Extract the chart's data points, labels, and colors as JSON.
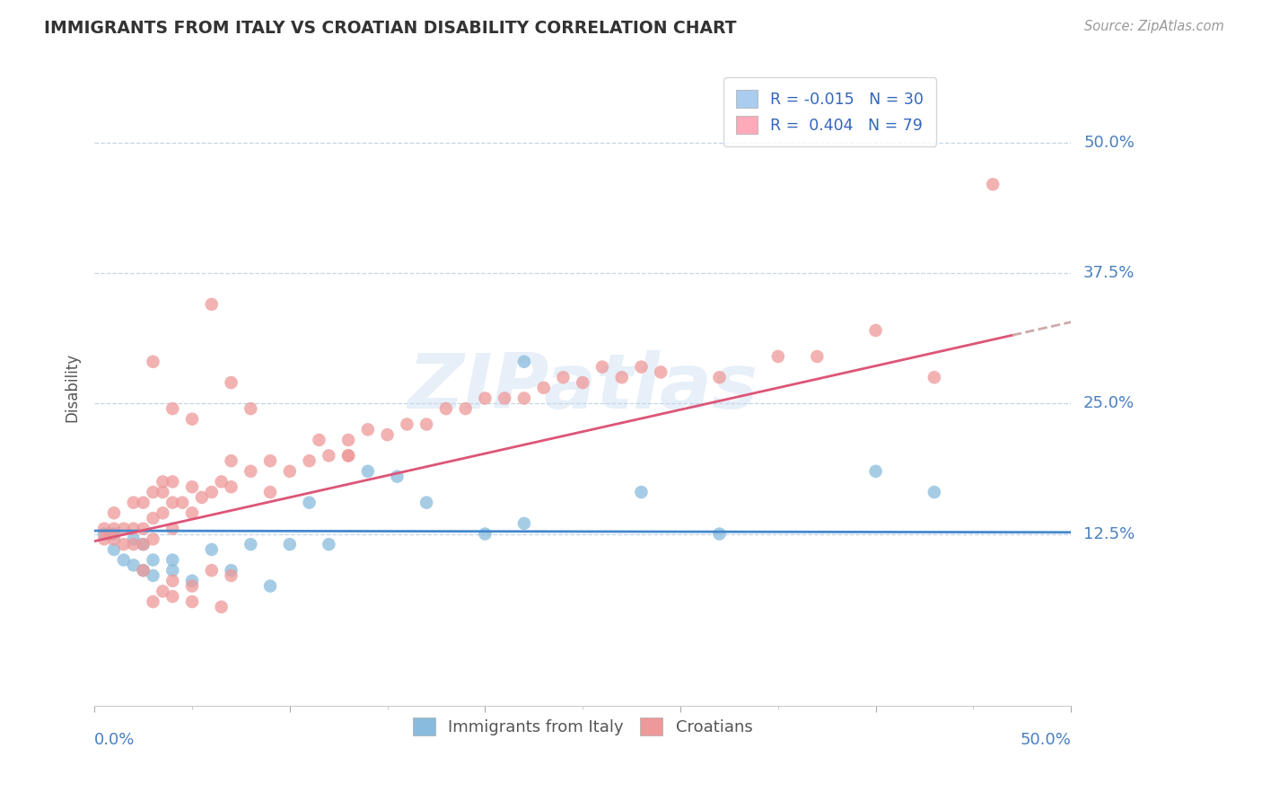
{
  "title": "IMMIGRANTS FROM ITALY VS CROATIAN DISABILITY CORRELATION CHART",
  "source": "Source: ZipAtlas.com",
  "ylabel": "Disability",
  "y_tick_labels": [
    "12.5%",
    "25.0%",
    "37.5%",
    "50.0%"
  ],
  "y_tick_values": [
    0.125,
    0.25,
    0.375,
    0.5
  ],
  "xlim": [
    0.0,
    0.5
  ],
  "ylim": [
    -0.04,
    0.57
  ],
  "legend_entries": [
    {
      "label": "R = -0.015   N = 30",
      "color": "#aaccee"
    },
    {
      "label": "R =  0.404   N = 79",
      "color": "#ffaabb"
    }
  ],
  "watermark": "ZIPatlas",
  "blue_color": "#88bbdd",
  "pink_color": "#ee9999",
  "blue_line_color": "#4488cc",
  "pink_line_color": "#dd5577",
  "blue_line_intercept": 0.128,
  "blue_line_slope": -0.003,
  "pink_line_intercept": 0.118,
  "pink_line_slope": 0.42,
  "blue_points_x": [
    0.005,
    0.01,
    0.01,
    0.015,
    0.02,
    0.02,
    0.025,
    0.025,
    0.03,
    0.03,
    0.04,
    0.04,
    0.05,
    0.06,
    0.07,
    0.08,
    0.09,
    0.1,
    0.11,
    0.12,
    0.14,
    0.155,
    0.17,
    0.2,
    0.22,
    0.28,
    0.32,
    0.4,
    0.43,
    0.22
  ],
  "blue_points_y": [
    0.125,
    0.125,
    0.11,
    0.1,
    0.095,
    0.12,
    0.09,
    0.115,
    0.085,
    0.1,
    0.1,
    0.09,
    0.08,
    0.11,
    0.09,
    0.115,
    0.075,
    0.115,
    0.155,
    0.115,
    0.185,
    0.18,
    0.155,
    0.125,
    0.135,
    0.165,
    0.125,
    0.185,
    0.165,
    0.29
  ],
  "pink_points_x": [
    0.005,
    0.005,
    0.008,
    0.01,
    0.01,
    0.01,
    0.015,
    0.015,
    0.02,
    0.02,
    0.02,
    0.025,
    0.025,
    0.025,
    0.03,
    0.03,
    0.03,
    0.035,
    0.035,
    0.04,
    0.04,
    0.04,
    0.045,
    0.05,
    0.05,
    0.055,
    0.06,
    0.065,
    0.07,
    0.07,
    0.08,
    0.09,
    0.09,
    0.1,
    0.11,
    0.115,
    0.12,
    0.13,
    0.13,
    0.14,
    0.15,
    0.16,
    0.17,
    0.18,
    0.19,
    0.2,
    0.21,
    0.22,
    0.23,
    0.24,
    0.25,
    0.26,
    0.27,
    0.28,
    0.29,
    0.32,
    0.35,
    0.37,
    0.4,
    0.43,
    0.03,
    0.04,
    0.05,
    0.07,
    0.08,
    0.06,
    0.035,
    0.04,
    0.05,
    0.06,
    0.07,
    0.035,
    0.025,
    0.04,
    0.05,
    0.065,
    0.03,
    0.46,
    0.13
  ],
  "pink_points_y": [
    0.13,
    0.12,
    0.125,
    0.12,
    0.13,
    0.145,
    0.115,
    0.13,
    0.115,
    0.13,
    0.155,
    0.115,
    0.13,
    0.155,
    0.12,
    0.14,
    0.165,
    0.145,
    0.165,
    0.13,
    0.155,
    0.175,
    0.155,
    0.145,
    0.17,
    0.16,
    0.165,
    0.175,
    0.17,
    0.195,
    0.185,
    0.195,
    0.165,
    0.185,
    0.195,
    0.215,
    0.2,
    0.215,
    0.2,
    0.225,
    0.22,
    0.23,
    0.23,
    0.245,
    0.245,
    0.255,
    0.255,
    0.255,
    0.265,
    0.275,
    0.27,
    0.285,
    0.275,
    0.285,
    0.28,
    0.275,
    0.295,
    0.295,
    0.32,
    0.275,
    0.29,
    0.245,
    0.235,
    0.27,
    0.245,
    0.345,
    0.175,
    0.08,
    0.075,
    0.09,
    0.085,
    0.07,
    0.09,
    0.065,
    0.06,
    0.055,
    0.06,
    0.46,
    0.2
  ]
}
